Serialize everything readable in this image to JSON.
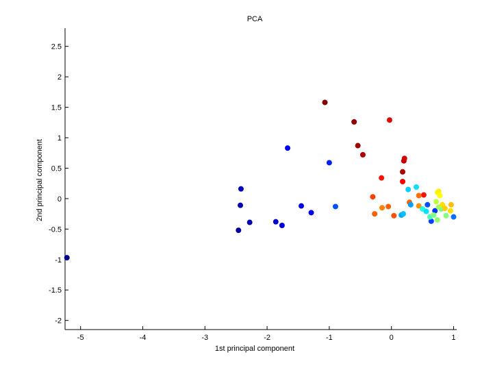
{
  "chart_data": {
    "type": "scatter",
    "title": "PCA",
    "xlabel": "1st principal component",
    "ylabel": "2nd principal component",
    "xlim": [
      -5.25,
      1.05
    ],
    "ylim": [
      -2.15,
      2.8
    ],
    "xticks": [
      -5,
      -4,
      -3,
      -2,
      -1,
      0,
      1
    ],
    "yticks": [
      -2,
      -1.5,
      -1,
      -0.5,
      0,
      0.5,
      1,
      1.5,
      2,
      2.5
    ],
    "grid": false,
    "points": [
      {
        "x": -5.22,
        "y": -0.97,
        "color": "#00008f"
      },
      {
        "x": -2.46,
        "y": -0.52,
        "color": "#00009f"
      },
      {
        "x": -2.43,
        "y": -0.11,
        "color": "#0000af"
      },
      {
        "x": -2.42,
        "y": 0.16,
        "color": "#0000bf"
      },
      {
        "x": -2.28,
        "y": -0.39,
        "color": "#0000af"
      },
      {
        "x": -1.86,
        "y": -0.38,
        "color": "#0000cf"
      },
      {
        "x": -1.76,
        "y": -0.44,
        "color": "#0000df"
      },
      {
        "x": -1.67,
        "y": 0.83,
        "color": "#0000ef"
      },
      {
        "x": -1.45,
        "y": -0.12,
        "color": "#0000df"
      },
      {
        "x": -1.29,
        "y": -0.23,
        "color": "#0000ef"
      },
      {
        "x": -1.0,
        "y": 0.59,
        "color": "#0020ff"
      },
      {
        "x": -0.9,
        "y": -0.13,
        "color": "#0050ff"
      },
      {
        "x": -1.07,
        "y": 1.58,
        "color": "#800000"
      },
      {
        "x": -0.6,
        "y": 1.26,
        "color": "#900000"
      },
      {
        "x": -0.54,
        "y": 0.87,
        "color": "#a00000"
      },
      {
        "x": -0.46,
        "y": 0.72,
        "color": "#b00000"
      },
      {
        "x": -0.03,
        "y": 1.29,
        "color": "#e00000"
      },
      {
        "x": -0.16,
        "y": 0.34,
        "color": "#ff1000"
      },
      {
        "x": 0.18,
        "y": 0.44,
        "color": "#b00000"
      },
      {
        "x": 0.2,
        "y": 0.62,
        "color": "#c00000"
      },
      {
        "x": 0.21,
        "y": 0.66,
        "color": "#d00000"
      },
      {
        "x": 0.18,
        "y": 0.28,
        "color": "#ff0000"
      },
      {
        "x": 0.52,
        "y": 0.06,
        "color": "#ff1000"
      },
      {
        "x": -0.3,
        "y": 0.03,
        "color": "#ff4000"
      },
      {
        "x": -0.27,
        "y": -0.25,
        "color": "#ff6000"
      },
      {
        "x": -0.15,
        "y": -0.15,
        "color": "#ff8000"
      },
      {
        "x": -0.05,
        "y": -0.13,
        "color": "#ff6000"
      },
      {
        "x": 0.04,
        "y": -0.28,
        "color": "#ff5000"
      },
      {
        "x": 0.29,
        "y": -0.06,
        "color": "#ff6000"
      },
      {
        "x": 0.44,
        "y": 0.05,
        "color": "#ff7000"
      },
      {
        "x": 0.44,
        "y": -0.12,
        "color": "#ff9000"
      },
      {
        "x": 0.27,
        "y": 0.15,
        "color": "#00d0ff"
      },
      {
        "x": 0.4,
        "y": 0.19,
        "color": "#10e0ff"
      },
      {
        "x": 0.16,
        "y": -0.27,
        "color": "#00a0ff"
      },
      {
        "x": 0.19,
        "y": -0.25,
        "color": "#00c0ff"
      },
      {
        "x": 0.31,
        "y": -0.1,
        "color": "#00a0ff"
      },
      {
        "x": 0.5,
        "y": -0.17,
        "color": "#20ffdf"
      },
      {
        "x": 0.56,
        "y": -0.21,
        "color": "#00e0ff"
      },
      {
        "x": 0.58,
        "y": -0.1,
        "color": "#0050ff"
      },
      {
        "x": 0.64,
        "y": -0.37,
        "color": "#0040ff"
      },
      {
        "x": 0.7,
        "y": -0.2,
        "color": "#0030ff"
      },
      {
        "x": 1.0,
        "y": -0.3,
        "color": "#0070ff"
      },
      {
        "x": 0.62,
        "y": -0.3,
        "color": "#50ffaf"
      },
      {
        "x": 0.68,
        "y": -0.27,
        "color": "#80ff80"
      },
      {
        "x": 0.74,
        "y": -0.35,
        "color": "#90ff70"
      },
      {
        "x": 0.8,
        "y": -0.17,
        "color": "#70ff90"
      },
      {
        "x": 0.88,
        "y": -0.28,
        "color": "#80ff80"
      },
      {
        "x": 0.76,
        "y": -0.14,
        "color": "#a0ff60"
      },
      {
        "x": 0.74,
        "y": 0.1,
        "color": "#f0ff10"
      },
      {
        "x": 0.76,
        "y": 0.12,
        "color": "#ffef00"
      },
      {
        "x": 0.78,
        "y": 0.05,
        "color": "#ffff00"
      },
      {
        "x": 0.82,
        "y": -0.1,
        "color": "#ffdf00"
      },
      {
        "x": 0.86,
        "y": -0.16,
        "color": "#ffcf00"
      },
      {
        "x": 0.96,
        "y": -0.1,
        "color": "#ffbf00"
      },
      {
        "x": 0.95,
        "y": -0.2,
        "color": "#ffdf00"
      },
      {
        "x": 0.72,
        "y": -0.05,
        "color": "#c0ff40"
      }
    ]
  }
}
